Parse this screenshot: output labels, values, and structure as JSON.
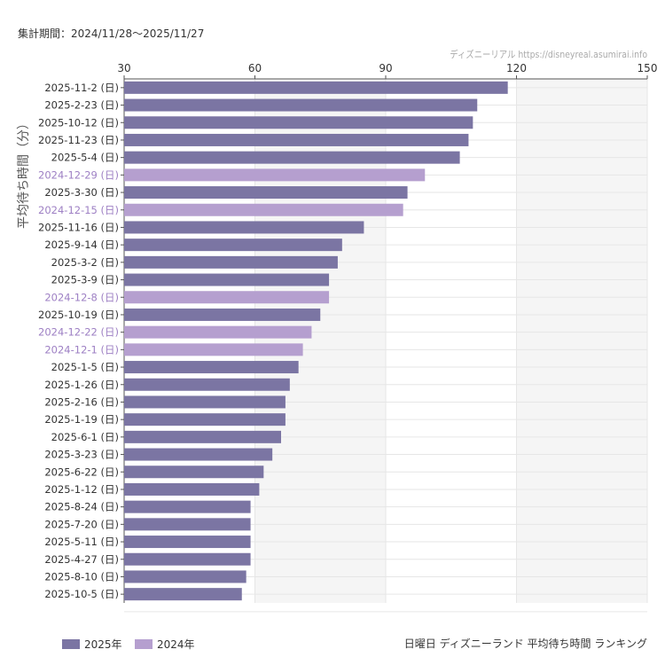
{
  "header": {
    "period": "集計期間：2024/11/28〜2025/11/27",
    "credit": "ディズニーリアル https://disneyreal.asumirai.info"
  },
  "chart_data": {
    "type": "bar",
    "orientation": "horizontal",
    "title": "日曜日 ディズニーランド 平均待ち時間 ランキング",
    "ylabel": "平均待ち時間（分）",
    "xlim": [
      30,
      150
    ],
    "xticks": [
      30,
      60,
      90,
      120,
      150
    ],
    "grid": true,
    "legend_placement": "bottom-left",
    "legend": [
      {
        "name": "2025年",
        "color": "#7b75a3"
      },
      {
        "name": "2024年",
        "color": "#b59fcf"
      }
    ],
    "categories": [
      "2025-11-2 (日)",
      "2025-2-23 (日)",
      "2025-10-12 (日)",
      "2025-11-23 (日)",
      "2025-5-4 (日)",
      "2024-12-29 (日)",
      "2025-3-30 (日)",
      "2024-12-15 (日)",
      "2025-11-16 (日)",
      "2025-9-14 (日)",
      "2025-3-2 (日)",
      "2025-3-9 (日)",
      "2024-12-8 (日)",
      "2025-10-19 (日)",
      "2024-12-22 (日)",
      "2024-12-1 (日)",
      "2025-1-5 (日)",
      "2025-1-26 (日)",
      "2025-2-16 (日)",
      "2025-1-19 (日)",
      "2025-6-1 (日)",
      "2025-3-23 (日)",
      "2025-6-22 (日)",
      "2025-1-12 (日)",
      "2025-8-24 (日)",
      "2025-7-20 (日)",
      "2025-5-11 (日)",
      "2025-4-27 (日)",
      "2025-8-10 (日)",
      "2025-10-5 (日)"
    ],
    "values": [
      118,
      111,
      110,
      109,
      107,
      99,
      95,
      94,
      85,
      80,
      79,
      77,
      77,
      75,
      73,
      71,
      70,
      68,
      67,
      67,
      66,
      64,
      62,
      61,
      59,
      59,
      59,
      59,
      58,
      57
    ],
    "series_of_bar": [
      "2025年",
      "2025年",
      "2025年",
      "2025年",
      "2025年",
      "2024年",
      "2025年",
      "2024年",
      "2025年",
      "2025年",
      "2025年",
      "2025年",
      "2024年",
      "2025年",
      "2024年",
      "2024年",
      "2025年",
      "2025年",
      "2025年",
      "2025年",
      "2025年",
      "2025年",
      "2025年",
      "2025年",
      "2025年",
      "2025年",
      "2025年",
      "2025年",
      "2025年",
      "2025年"
    ]
  }
}
